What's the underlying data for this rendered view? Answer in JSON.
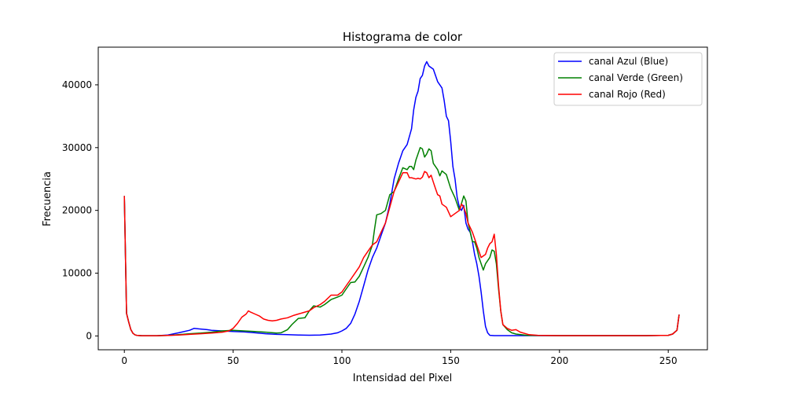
{
  "chart_data": {
    "type": "line",
    "title": "Histograma de color",
    "xlabel": "Intensidad del Pixel",
    "ylabel": "Frecuencia",
    "xlim": [
      -12,
      268
    ],
    "ylim": [
      -2200,
      46000
    ],
    "xticks": [
      0,
      50,
      100,
      150,
      200,
      250
    ],
    "yticks": [
      0,
      10000,
      20000,
      30000,
      40000
    ],
    "grid": false,
    "legend_position": "top-right",
    "series": [
      {
        "name": "canal Azul (Blue)",
        "color": "#0000ff",
        "points": [
          [
            0,
            22300
          ],
          [
            1,
            3600
          ],
          [
            2,
            2200
          ],
          [
            3,
            1000
          ],
          [
            4,
            400
          ],
          [
            5,
            150
          ],
          [
            6,
            80
          ],
          [
            8,
            40
          ],
          [
            10,
            40
          ],
          [
            15,
            40
          ],
          [
            20,
            150
          ],
          [
            25,
            500
          ],
          [
            30,
            900
          ],
          [
            32,
            1200
          ],
          [
            35,
            1100
          ],
          [
            38,
            1000
          ],
          [
            40,
            900
          ],
          [
            45,
            800
          ],
          [
            50,
            700
          ],
          [
            55,
            650
          ],
          [
            60,
            500
          ],
          [
            65,
            350
          ],
          [
            70,
            250
          ],
          [
            75,
            200
          ],
          [
            80,
            150
          ],
          [
            85,
            120
          ],
          [
            90,
            150
          ],
          [
            95,
            300
          ],
          [
            98,
            500
          ],
          [
            100,
            800
          ],
          [
            102,
            1200
          ],
          [
            104,
            2000
          ],
          [
            106,
            3500
          ],
          [
            108,
            5500
          ],
          [
            110,
            8000
          ],
          [
            112,
            10500
          ],
          [
            114,
            12500
          ],
          [
            116,
            14000
          ],
          [
            118,
            16000
          ],
          [
            120,
            18000
          ],
          [
            122,
            21000
          ],
          [
            124,
            25000
          ],
          [
            126,
            27500
          ],
          [
            128,
            29500
          ],
          [
            130,
            30500
          ],
          [
            132,
            33000
          ],
          [
            133,
            36000
          ],
          [
            134,
            38000
          ],
          [
            135,
            39000
          ],
          [
            136,
            41000
          ],
          [
            137,
            41500
          ],
          [
            138,
            43000
          ],
          [
            139,
            43700
          ],
          [
            140,
            43000
          ],
          [
            142,
            42500
          ],
          [
            144,
            40500
          ],
          [
            146,
            39500
          ],
          [
            147,
            37500
          ],
          [
            148,
            35000
          ],
          [
            149,
            34300
          ],
          [
            150,
            31000
          ],
          [
            151,
            27000
          ],
          [
            152,
            25000
          ],
          [
            153,
            22000
          ],
          [
            154,
            20500
          ],
          [
            155,
            20000
          ],
          [
            156,
            20800
          ],
          [
            157,
            18000
          ],
          [
            158,
            17000
          ],
          [
            159,
            16500
          ],
          [
            160,
            15000
          ],
          [
            161,
            13000
          ],
          [
            162,
            11500
          ],
          [
            163,
            9500
          ],
          [
            164,
            7000
          ],
          [
            165,
            4000
          ],
          [
            166,
            1500
          ],
          [
            167,
            500
          ],
          [
            168,
            100
          ],
          [
            170,
            50
          ],
          [
            175,
            50
          ],
          [
            180,
            50
          ],
          [
            190,
            50
          ],
          [
            200,
            50
          ],
          [
            210,
            50
          ],
          [
            220,
            50
          ],
          [
            230,
            50
          ],
          [
            240,
            50
          ],
          [
            250,
            100
          ],
          [
            252,
            300
          ],
          [
            254,
            900
          ],
          [
            255,
            3400
          ]
        ]
      },
      {
        "name": "canal Verde (Green)",
        "color": "#008000",
        "points": [
          [
            0,
            22300
          ],
          [
            1,
            3600
          ],
          [
            2,
            2200
          ],
          [
            3,
            1000
          ],
          [
            4,
            400
          ],
          [
            5,
            150
          ],
          [
            6,
            80
          ],
          [
            8,
            40
          ],
          [
            10,
            40
          ],
          [
            15,
            40
          ],
          [
            20,
            80
          ],
          [
            25,
            200
          ],
          [
            30,
            350
          ],
          [
            35,
            450
          ],
          [
            40,
            600
          ],
          [
            45,
            800
          ],
          [
            50,
            900
          ],
          [
            55,
            800
          ],
          [
            60,
            700
          ],
          [
            65,
            600
          ],
          [
            70,
            450
          ],
          [
            72,
            500
          ],
          [
            75,
            1000
          ],
          [
            77,
            1800
          ],
          [
            80,
            2800
          ],
          [
            83,
            2900
          ],
          [
            85,
            4000
          ],
          [
            87,
            4800
          ],
          [
            90,
            4600
          ],
          [
            92,
            5000
          ],
          [
            95,
            5800
          ],
          [
            98,
            6200
          ],
          [
            100,
            6500
          ],
          [
            102,
            7500
          ],
          [
            104,
            8500
          ],
          [
            106,
            8600
          ],
          [
            108,
            9500
          ],
          [
            110,
            11000
          ],
          [
            112,
            12500
          ],
          [
            114,
            14500
          ],
          [
            115,
            17000
          ],
          [
            116,
            19300
          ],
          [
            118,
            19500
          ],
          [
            120,
            20000
          ],
          [
            122,
            22500
          ],
          [
            124,
            23000
          ],
          [
            126,
            25000
          ],
          [
            128,
            26800
          ],
          [
            130,
            26500
          ],
          [
            131,
            27000
          ],
          [
            132,
            27000
          ],
          [
            133,
            26500
          ],
          [
            134,
            28000
          ],
          [
            136,
            30000
          ],
          [
            137,
            29800
          ],
          [
            138,
            28500
          ],
          [
            139,
            29000
          ],
          [
            140,
            29800
          ],
          [
            141,
            29500
          ],
          [
            142,
            27500
          ],
          [
            144,
            26500
          ],
          [
            145,
            25500
          ],
          [
            146,
            26300
          ],
          [
            148,
            25700
          ],
          [
            150,
            23500
          ],
          [
            152,
            22000
          ],
          [
            154,
            20000
          ],
          [
            156,
            22300
          ],
          [
            157,
            21500
          ],
          [
            158,
            18000
          ],
          [
            159,
            16500
          ],
          [
            160,
            15000
          ],
          [
            161,
            15000
          ],
          [
            162,
            14000
          ],
          [
            163,
            12500
          ],
          [
            165,
            10500
          ],
          [
            166,
            11500
          ],
          [
            168,
            12500
          ],
          [
            169,
            13700
          ],
          [
            170,
            13500
          ],
          [
            171,
            11500
          ],
          [
            172,
            7500
          ],
          [
            173,
            4000
          ],
          [
            174,
            1800
          ],
          [
            176,
            1000
          ],
          [
            178,
            500
          ],
          [
            180,
            300
          ],
          [
            185,
            100
          ],
          [
            190,
            60
          ],
          [
            200,
            50
          ],
          [
            210,
            50
          ],
          [
            220,
            50
          ],
          [
            230,
            50
          ],
          [
            240,
            50
          ],
          [
            250,
            100
          ],
          [
            252,
            300
          ],
          [
            254,
            900
          ],
          [
            255,
            3400
          ]
        ]
      },
      {
        "name": "canal Rojo (Red)",
        "color": "#ff0000",
        "points": [
          [
            0,
            22300
          ],
          [
            1,
            3600
          ],
          [
            2,
            2200
          ],
          [
            3,
            1000
          ],
          [
            4,
            400
          ],
          [
            5,
            150
          ],
          [
            6,
            80
          ],
          [
            8,
            40
          ],
          [
            10,
            40
          ],
          [
            15,
            40
          ],
          [
            20,
            80
          ],
          [
            25,
            150
          ],
          [
            30,
            250
          ],
          [
            35,
            350
          ],
          [
            40,
            450
          ],
          [
            45,
            600
          ],
          [
            48,
            800
          ],
          [
            50,
            1200
          ],
          [
            52,
            2000
          ],
          [
            54,
            3000
          ],
          [
            56,
            3500
          ],
          [
            57,
            4000
          ],
          [
            58,
            3800
          ],
          [
            60,
            3500
          ],
          [
            62,
            3200
          ],
          [
            64,
            2700
          ],
          [
            66,
            2500
          ],
          [
            68,
            2400
          ],
          [
            70,
            2500
          ],
          [
            72,
            2700
          ],
          [
            75,
            2900
          ],
          [
            78,
            3300
          ],
          [
            80,
            3500
          ],
          [
            82,
            3700
          ],
          [
            85,
            4000
          ],
          [
            87,
            4500
          ],
          [
            90,
            5000
          ],
          [
            92,
            5500
          ],
          [
            95,
            6500
          ],
          [
            98,
            6500
          ],
          [
            100,
            7000
          ],
          [
            102,
            8000
          ],
          [
            104,
            9000
          ],
          [
            106,
            10000
          ],
          [
            108,
            11000
          ],
          [
            110,
            12500
          ],
          [
            112,
            13500
          ],
          [
            114,
            14500
          ],
          [
            116,
            15000
          ],
          [
            118,
            16500
          ],
          [
            120,
            18000
          ],
          [
            122,
            20500
          ],
          [
            124,
            23000
          ],
          [
            126,
            24500
          ],
          [
            128,
            26000
          ],
          [
            130,
            26000
          ],
          [
            131,
            25200
          ],
          [
            132,
            25200
          ],
          [
            134,
            25000
          ],
          [
            135,
            25100
          ],
          [
            136,
            25000
          ],
          [
            137,
            25300
          ],
          [
            138,
            26200
          ],
          [
            139,
            26000
          ],
          [
            140,
            25200
          ],
          [
            141,
            25600
          ],
          [
            142,
            24500
          ],
          [
            143,
            23500
          ],
          [
            144,
            22500
          ],
          [
            145,
            22300
          ],
          [
            146,
            21000
          ],
          [
            148,
            20500
          ],
          [
            150,
            19000
          ],
          [
            152,
            19500
          ],
          [
            154,
            20000
          ],
          [
            155,
            21000
          ],
          [
            156,
            20500
          ],
          [
            157,
            19500
          ],
          [
            158,
            18000
          ],
          [
            160,
            16500
          ],
          [
            162,
            14500
          ],
          [
            164,
            12500
          ],
          [
            166,
            13000
          ],
          [
            167,
            14000
          ],
          [
            168,
            14700
          ],
          [
            169,
            15000
          ],
          [
            170,
            16200
          ],
          [
            171,
            13000
          ],
          [
            172,
            8000
          ],
          [
            173,
            4000
          ],
          [
            174,
            1800
          ],
          [
            176,
            1200
          ],
          [
            178,
            900
          ],
          [
            180,
            1000
          ],
          [
            182,
            600
          ],
          [
            184,
            400
          ],
          [
            186,
            200
          ],
          [
            190,
            100
          ],
          [
            200,
            50
          ],
          [
            210,
            50
          ],
          [
            220,
            50
          ],
          [
            230,
            50
          ],
          [
            240,
            50
          ],
          [
            250,
            100
          ],
          [
            252,
            300
          ],
          [
            254,
            900
          ],
          [
            255,
            3400
          ]
        ]
      }
    ]
  }
}
